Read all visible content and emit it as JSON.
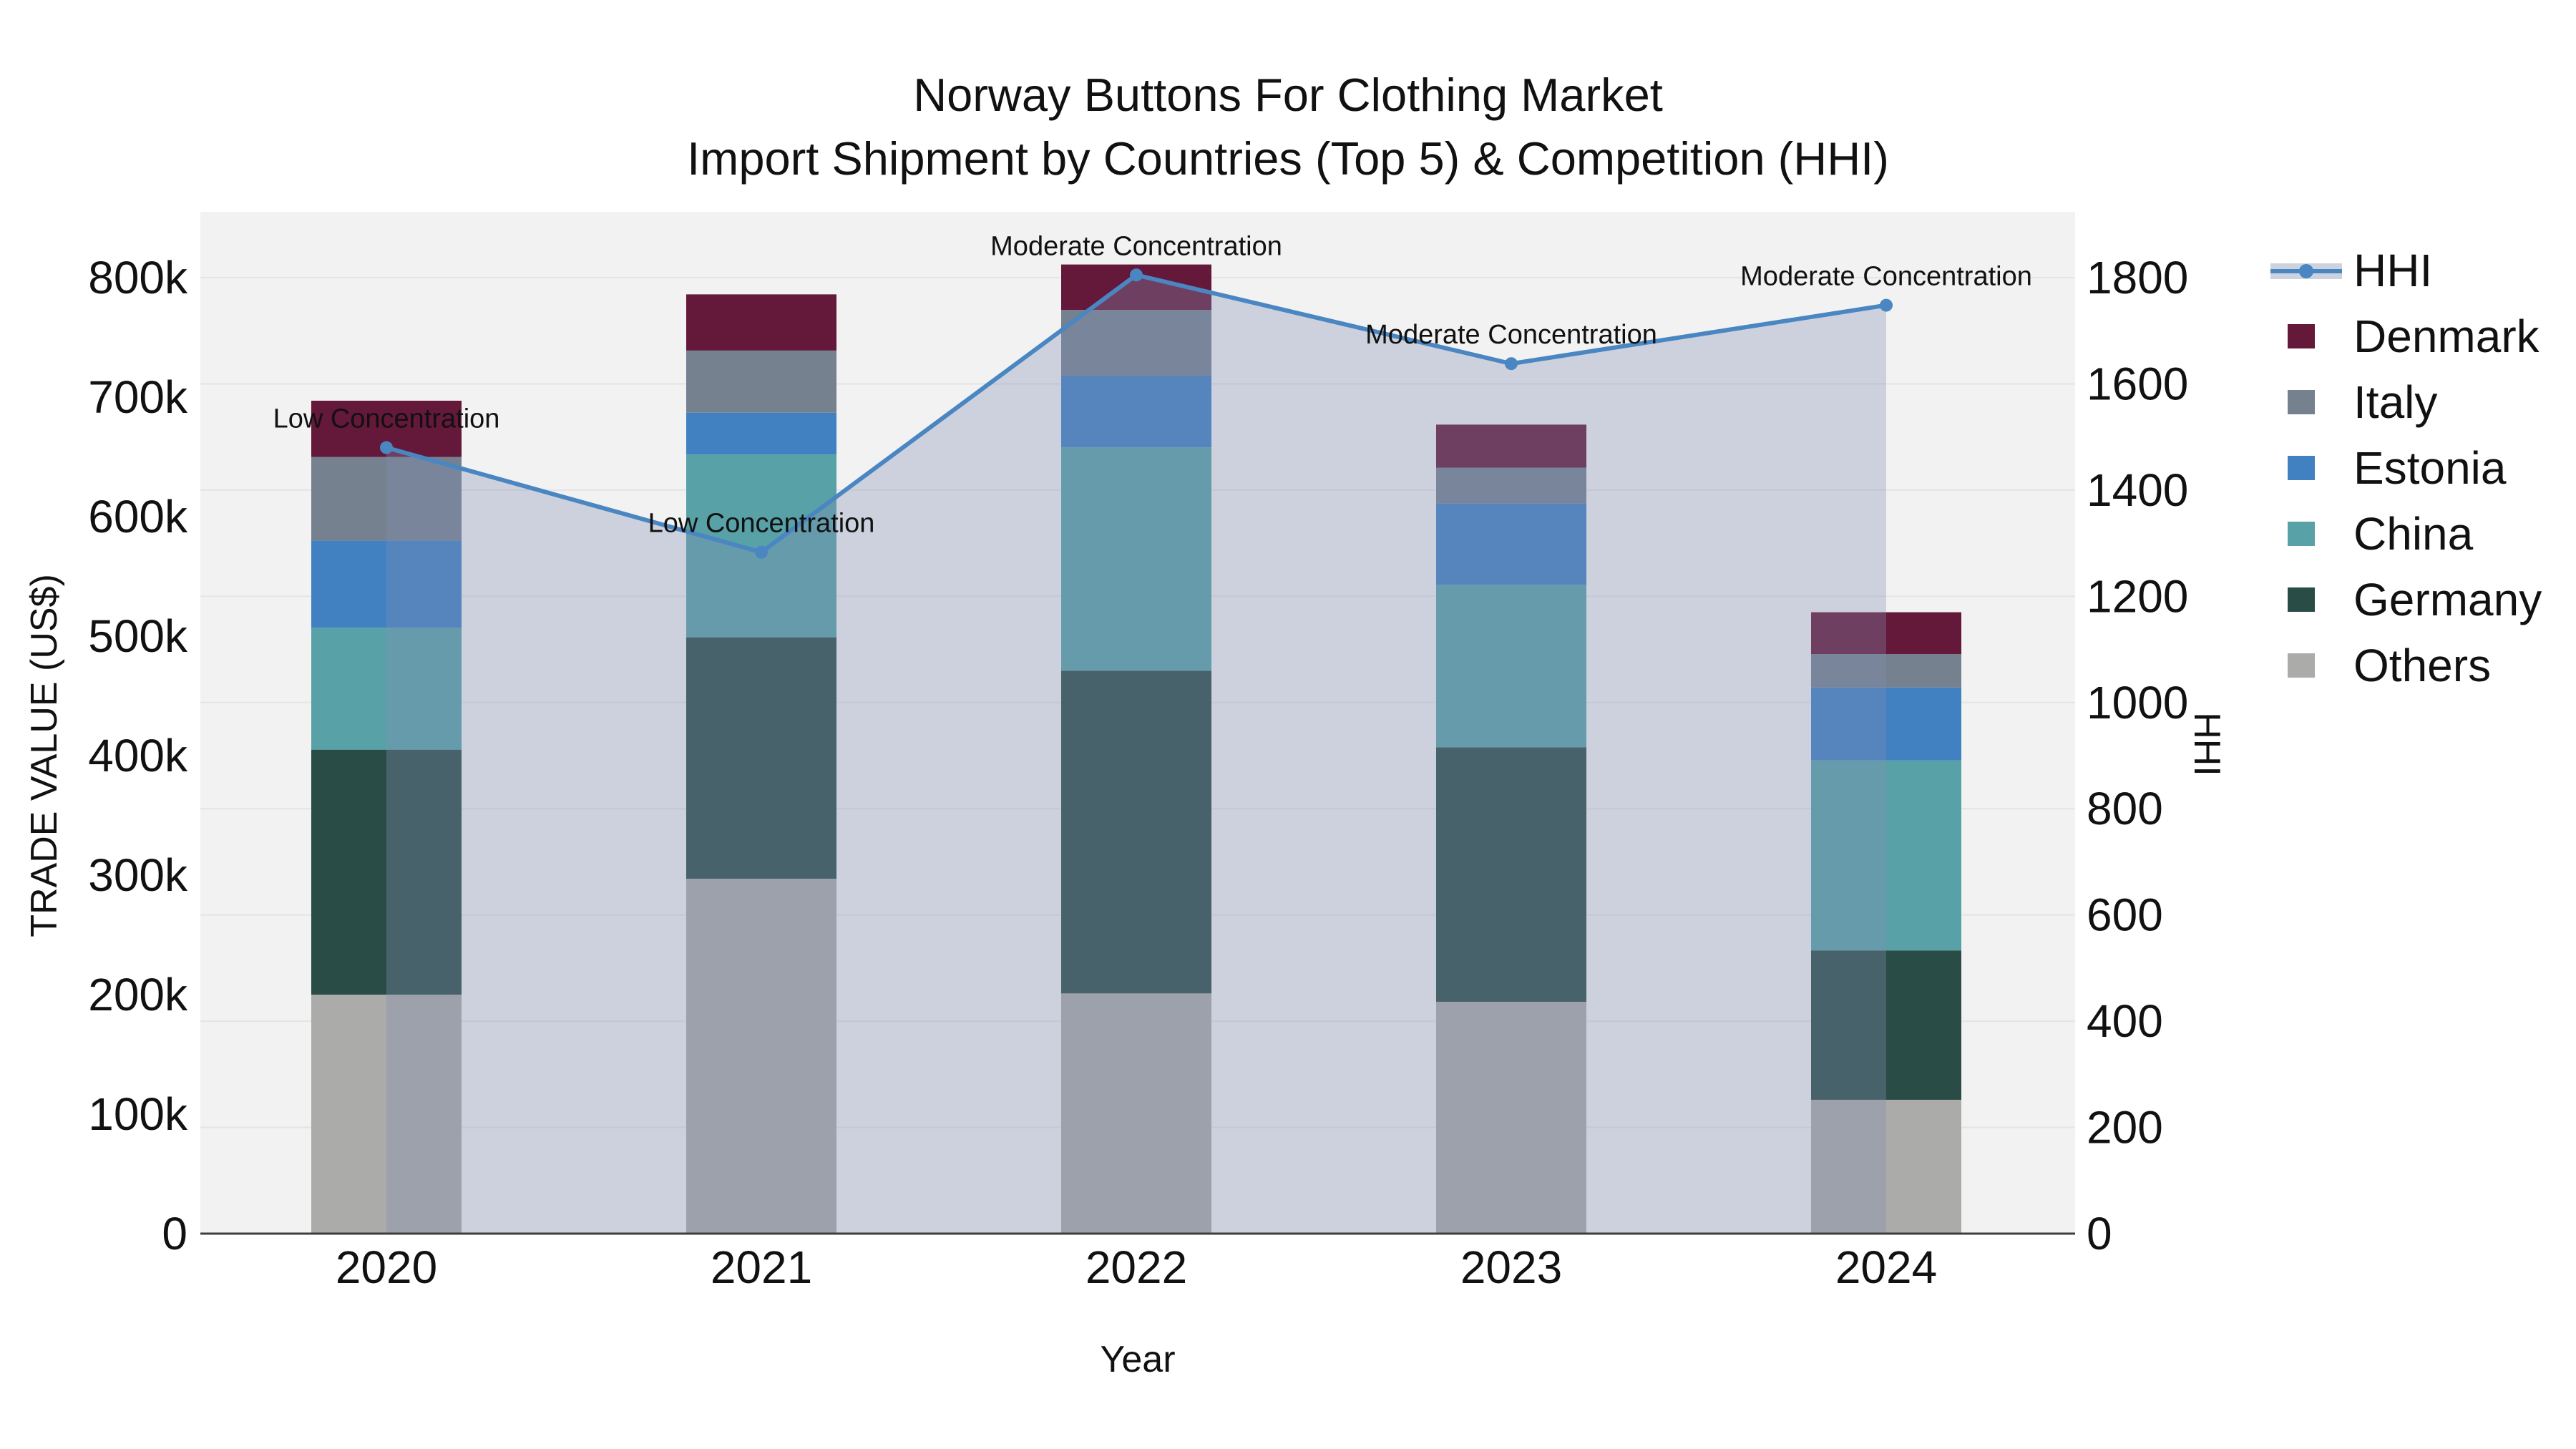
{
  "chart_data": {
    "type": "stacked-bar+line",
    "title": {
      "line1": "Norway Buttons For Clothing Market",
      "line2": "Import Shipment by Countries (Top 5) & Competition (HHI)"
    },
    "categories": [
      "2020",
      "2021",
      "2022",
      "2023",
      "2024"
    ],
    "axes": {
      "left": {
        "title": "TRADE VALUE (US$)",
        "tick_labels": [
          "0",
          "100k",
          "200k",
          "300k",
          "400k",
          "500k",
          "600k",
          "700k",
          "800k"
        ],
        "tick_values": [
          0,
          100000,
          200000,
          300000,
          400000,
          500000,
          600000,
          700000,
          800000
        ],
        "range": [
          0,
          855000
        ]
      },
      "right": {
        "title": "HHI",
        "tick_labels": [
          "0",
          "200",
          "400",
          "600",
          "800",
          "1000",
          "1200",
          "1400",
          "1600",
          "1800"
        ],
        "tick_values": [
          0,
          200,
          400,
          600,
          800,
          1000,
          1200,
          1400,
          1600,
          1800
        ],
        "range": [
          0,
          1925
        ],
        "grid": true
      },
      "x": {
        "title": "Year"
      }
    },
    "series": [
      {
        "name": "Others",
        "color": "#ababa9",
        "values": [
          200000,
          297000,
          201000,
          194000,
          112000
        ]
      },
      {
        "name": "Germany",
        "color": "#2a4c46",
        "values": [
          205000,
          202000,
          270000,
          213000,
          125000
        ]
      },
      {
        "name": "China",
        "color": "#58a2a7",
        "values": [
          102000,
          153000,
          187000,
          136000,
          159000
        ]
      },
      {
        "name": "Estonia",
        "color": "#4181c2",
        "values": [
          73000,
          35000,
          60000,
          68000,
          61000
        ]
      },
      {
        "name": "Italy",
        "color": "#75818e",
        "values": [
          70000,
          52000,
          55000,
          30000,
          28000
        ]
      },
      {
        "name": "Denmark",
        "color": "#64183a",
        "values": [
          47000,
          47000,
          38000,
          36000,
          35000
        ]
      }
    ],
    "hhi": {
      "name": "HHI",
      "color": "#4a86c2",
      "area_fill_color": "rgba(130,144,180,0.33)",
      "legend_band_color": "#cdd3de",
      "values": [
        1480,
        1283,
        1805,
        1638,
        1748
      ]
    },
    "annotations": [
      {
        "category": "2020",
        "text": "Low Concentration"
      },
      {
        "category": "2021",
        "text": "Low Concentration"
      },
      {
        "category": "2022",
        "text": "Moderate Concentration"
      },
      {
        "category": "2023",
        "text": "Moderate Concentration"
      },
      {
        "category": "2024",
        "text": "Moderate Concentration"
      }
    ],
    "legend": {
      "position": "top-right",
      "items": [
        "HHI",
        "Denmark",
        "Italy",
        "Estonia",
        "China",
        "Germany",
        "Others"
      ]
    },
    "style": {
      "plot_background": "#f2f2f2",
      "paper_background": "#ffffff",
      "grid_color": "#e4e4e4",
      "axis_line_color": "#3d3d3d",
      "text_color": "#111111"
    }
  }
}
